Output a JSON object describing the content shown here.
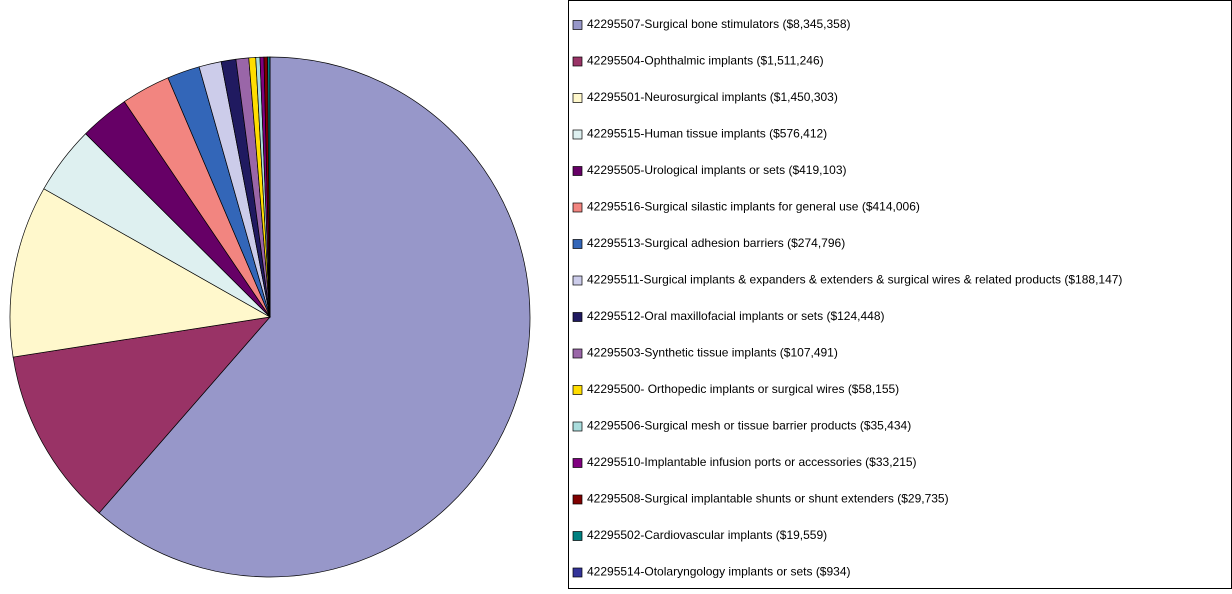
{
  "chart_data": {
    "type": "pie",
    "categories": [
      "42295507-Surgical bone stimulators",
      "42295504-Ophthalmic implants",
      "42295501-Neurosurgical implants",
      "42295515-Human tissue implants",
      "42295505-Urological implants or sets",
      "42295516-Surgical silastic implants for general use",
      "42295513-Surgical adhesion barriers",
      "42295511-Surgical implants & expanders & extenders & surgical wires & related products",
      "42295512-Oral maxillofacial implants or sets",
      "42295503-Synthetic tissue implants",
      "42295500- Orthopedic implants or surgical wires",
      "42295506-Surgical mesh or tissue barrier products",
      "42295510-Implantable infusion ports or accessories",
      "42295508-Surgical implantable shunts or shunt extenders",
      "42295502-Cardiovascular implants",
      "42295514-Otolaryngology implants or sets"
    ],
    "values": [
      8345358,
      1511246,
      1450303,
      576412,
      419103,
      414006,
      274796,
      188147,
      124448,
      107491,
      58155,
      35434,
      33215,
      29735,
      19559,
      934
    ],
    "value_labels": [
      "($8,345,358)",
      "($1,511,246)",
      "($1,450,303)",
      "($576,412)",
      "($419,103)",
      "($414,006)",
      "($274,796)",
      "($188,147)",
      "($124,448)",
      "($107,491)",
      "($58,155)",
      "($35,434)",
      "($33,215)",
      "($29,735)",
      "($19,559)",
      "($934)"
    ],
    "colors": [
      "#9797c9",
      "#993366",
      "#fff8cc",
      "#def0f0",
      "#660066",
      "#f28580",
      "#3366b8",
      "#ccccea",
      "#201a60",
      "#9a66a8",
      "#ffdd00",
      "#aadddd",
      "#800080",
      "#800000",
      "#008080",
      "#333399"
    ],
    "legend": "right"
  }
}
